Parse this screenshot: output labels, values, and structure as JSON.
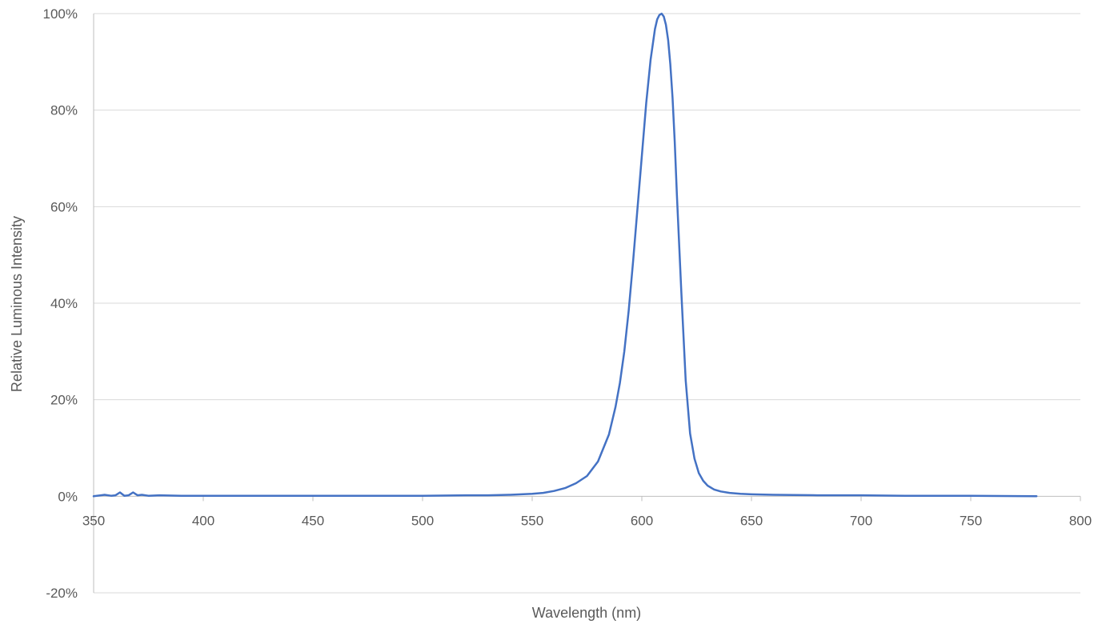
{
  "chart_data": {
    "type": "line",
    "title": "",
    "xlabel": "Wavelength (nm)",
    "ylabel": "Relative Luminous Intensity",
    "xlim": [
      350,
      800
    ],
    "ylim": [
      -20,
      100
    ],
    "x_ticks": [
      350,
      400,
      450,
      500,
      550,
      600,
      650,
      700,
      750,
      800
    ],
    "x_tick_labels": [
      "350",
      "400",
      "450",
      "500",
      "550",
      "600",
      "650",
      "700",
      "750",
      "800"
    ],
    "y_ticks": [
      -20,
      0,
      20,
      40,
      60,
      80,
      100
    ],
    "y_tick_labels": [
      "-20%",
      "0%",
      "20%",
      "40%",
      "60%",
      "80%",
      "100%"
    ],
    "grid": "horizontal",
    "legend": "none",
    "line_color": "#4472C4",
    "grid_color": "#D9D9D9",
    "axis_color": "#BFBFBF",
    "series": [
      {
        "x": [
          350,
          355,
          358,
          360,
          362,
          364,
          366,
          368,
          370,
          372,
          375,
          380,
          390,
          400,
          420,
          450,
          480,
          500,
          520,
          530,
          540,
          545,
          550,
          555,
          560,
          565,
          570,
          575,
          580,
          585,
          588,
          590,
          592,
          594,
          596,
          598,
          600,
          602,
          604,
          606,
          607,
          608,
          609,
          610,
          611,
          612,
          613,
          614,
          615,
          616,
          618,
          620,
          622,
          624,
          626,
          628,
          630,
          633,
          636,
          640,
          645,
          650,
          660,
          680,
          700,
          720,
          750,
          780
        ],
        "y": [
          0,
          0.3,
          0.1,
          0.2,
          0.8,
          0.1,
          0.2,
          0.8,
          0.2,
          0.3,
          0.1,
          0.2,
          0.1,
          0.1,
          0.1,
          0.1,
          0.1,
          0.1,
          0.2,
          0.2,
          0.3,
          0.4,
          0.5,
          0.7,
          1.1,
          1.7,
          2.7,
          4.2,
          7.2,
          12.8,
          18.5,
          23.5,
          30,
          38.5,
          48.5,
          59.5,
          70.5,
          81.5,
          90.5,
          96.8,
          98.8,
          99.7,
          100,
          99.4,
          97.7,
          94.5,
          89.5,
          82.5,
          73.5,
          62.5,
          42.5,
          24,
          13,
          7.8,
          4.8,
          3.2,
          2.2,
          1.4,
          1,
          0.7,
          0.5,
          0.4,
          0.3,
          0.2,
          0.2,
          0.1,
          0.1,
          0
        ]
      }
    ]
  }
}
